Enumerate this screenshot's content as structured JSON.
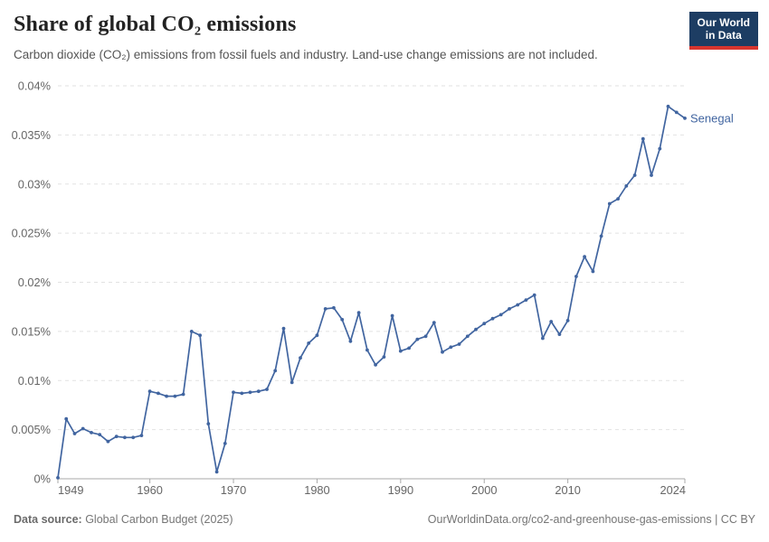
{
  "header": {
    "title": "Share of global CO₂ emissions",
    "subtitle": "Carbon dioxide (CO₂) emissions from fossil fuels and industry. Land-use change emissions are not included."
  },
  "logo": {
    "line1": "Our World",
    "line2": "in Data",
    "bg_color": "#1d3d63",
    "accent_color": "#d8352e"
  },
  "chart_data": {
    "type": "line",
    "title": "Share of global CO₂ emissions",
    "xlabel": "",
    "ylabel": "",
    "xlim": [
      1949,
      2024
    ],
    "ylim": [
      0,
      0.04
    ],
    "grid": "horizontal-dashed",
    "legend_position": "end-of-line-label",
    "x_ticks": [
      1949,
      1960,
      1970,
      1980,
      1990,
      2000,
      2010,
      2024
    ],
    "y_ticks": [
      {
        "value": 0,
        "label": "0%"
      },
      {
        "value": 0.005,
        "label": "0.005%"
      },
      {
        "value": 0.01,
        "label": "0.01%"
      },
      {
        "value": 0.015,
        "label": "0.015%"
      },
      {
        "value": 0.02,
        "label": "0.02%"
      },
      {
        "value": 0.025,
        "label": "0.025%"
      },
      {
        "value": 0.03,
        "label": "0.03%"
      },
      {
        "value": 0.035,
        "label": "0.035%"
      },
      {
        "value": 0.04,
        "label": "0.04%"
      }
    ],
    "series": [
      {
        "name": "Senegal",
        "color": "#4165a0",
        "x_start": 1949,
        "values": [
          0.0001,
          0.0061,
          0.0046,
          0.0051,
          0.0047,
          0.0045,
          0.0038,
          0.0043,
          0.0042,
          0.0042,
          0.0044,
          0.0089,
          0.0087,
          0.0084,
          0.0084,
          0.0086,
          0.015,
          0.0146,
          0.0056,
          0.0007,
          0.0036,
          0.0088,
          0.0087,
          0.0088,
          0.0089,
          0.0091,
          0.011,
          0.0153,
          0.0098,
          0.0123,
          0.0138,
          0.0146,
          0.0173,
          0.0174,
          0.0162,
          0.014,
          0.0169,
          0.0131,
          0.0116,
          0.0124,
          0.0166,
          0.013,
          0.0133,
          0.0142,
          0.0145,
          0.0159,
          0.0129,
          0.0134,
          0.0137,
          0.0145,
          0.0152,
          0.0158,
          0.0163,
          0.0167,
          0.0173,
          0.0177,
          0.0182,
          0.0187,
          0.0143,
          0.016,
          0.0147,
          0.0161,
          0.0206,
          0.0226,
          0.0211,
          0.0247,
          0.028,
          0.0285,
          0.0298,
          0.0309,
          0.0346,
          0.0309,
          0.0336,
          0.0379,
          0.0373,
          0.0367
        ]
      }
    ],
    "style": {
      "gridline_color": "#e2e2e2",
      "axis_color": "#a8a8a8",
      "tick_label_color": "#666666"
    }
  },
  "footer": {
    "source_label": "Data source:",
    "source_value": " Global Carbon Budget (2025)",
    "link": "OurWorldinData.org/co2-and-greenhouse-gas-emissions | CC BY"
  }
}
